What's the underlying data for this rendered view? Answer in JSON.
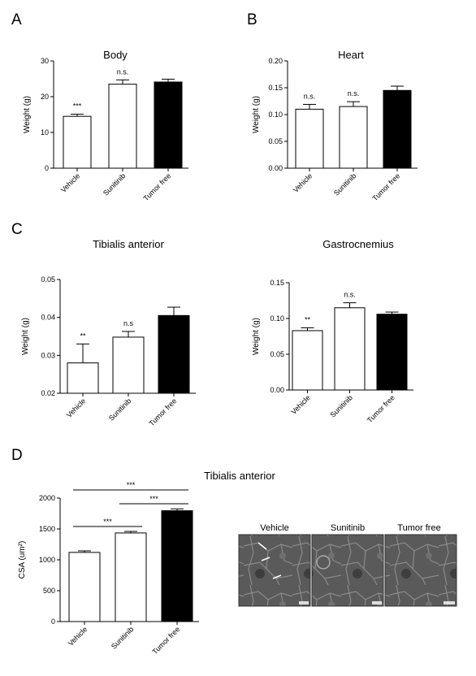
{
  "panels": {
    "A": "A",
    "B": "B",
    "C": "C",
    "D": "D"
  },
  "chart_data": [
    {
      "type": "bar",
      "title": "Body",
      "ylabel": "Weight (g)",
      "categories": [
        "Vehicle",
        "Sunitinib",
        "Tumor free"
      ],
      "values": [
        14.5,
        23.5,
        24.1
      ],
      "errors": [
        0.6,
        1.2,
        0.8
      ],
      "colors": [
        "#ffffff",
        "#ffffff",
        "#000000"
      ],
      "ylim": [
        0,
        30
      ],
      "yticks": [
        "0",
        "10",
        "20",
        "30"
      ],
      "annotations": [
        "***",
        "n.s.",
        ""
      ]
    },
    {
      "type": "bar",
      "title": "Heart",
      "ylabel": "Weight (g)",
      "categories": [
        "Vehicle",
        "Sunitinib",
        "Tumor free"
      ],
      "values": [
        0.11,
        0.115,
        0.145
      ],
      "errors": [
        0.009,
        0.009,
        0.008
      ],
      "colors": [
        "#ffffff",
        "#ffffff",
        "#000000"
      ],
      "ylim": [
        0,
        0.2
      ],
      "yticks": [
        "0.00",
        "0.05",
        "0.10",
        "0.15",
        "0.20"
      ],
      "annotations": [
        "n.s.",
        "n.s.",
        ""
      ]
    },
    {
      "type": "bar",
      "title": "Tibialis anterior",
      "ylabel": "Weight (g)",
      "categories": [
        "Vehicle",
        "Sunitinib",
        "Tumor free"
      ],
      "values": [
        0.028,
        0.0348,
        0.0405
      ],
      "errors": [
        0.005,
        0.0015,
        0.0022
      ],
      "colors": [
        "#ffffff",
        "#ffffff",
        "#000000"
      ],
      "ylim": [
        0.02,
        0.05
      ],
      "yticks": [
        "0.02",
        "0.03",
        "0.04",
        "0.05"
      ],
      "annotations": [
        "**",
        "n.s",
        ""
      ]
    },
    {
      "type": "bar",
      "title": "Gastrocnemius",
      "ylabel": "Weight (g)",
      "categories": [
        "Vehicle",
        "Sunitinib",
        "Tumor free"
      ],
      "values": [
        0.083,
        0.115,
        0.106
      ],
      "errors": [
        0.004,
        0.007,
        0.003
      ],
      "colors": [
        "#ffffff",
        "#ffffff",
        "#000000"
      ],
      "ylim": [
        0,
        0.15
      ],
      "yticks": [
        "0.00",
        "0.05",
        "0.10",
        "0.15"
      ],
      "annotations": [
        "**",
        "n.s.",
        ""
      ]
    },
    {
      "type": "bar",
      "title": "Tibialis anterior",
      "ylabel": "CSA (um²)",
      "categories": [
        "Vehicle",
        "Sunitinib",
        "Tumor free"
      ],
      "values": [
        1120,
        1435,
        1795
      ],
      "errors": [
        25,
        25,
        30
      ],
      "colors": [
        "#ffffff",
        "#ffffff",
        "#000000"
      ],
      "ylim": [
        0,
        2000
      ],
      "yticks": [
        "0",
        "500",
        "1000",
        "1500",
        "2000"
      ],
      "comparisons": [
        {
          "from": 0,
          "to": 1,
          "label": "***"
        },
        {
          "from": 1,
          "to": 2,
          "label": "***"
        },
        {
          "from": 0,
          "to": 2,
          "label": "***"
        }
      ]
    }
  ],
  "micrographs": {
    "labels": [
      "Vehicle",
      "Sunitinib",
      "Tumor free"
    ]
  }
}
